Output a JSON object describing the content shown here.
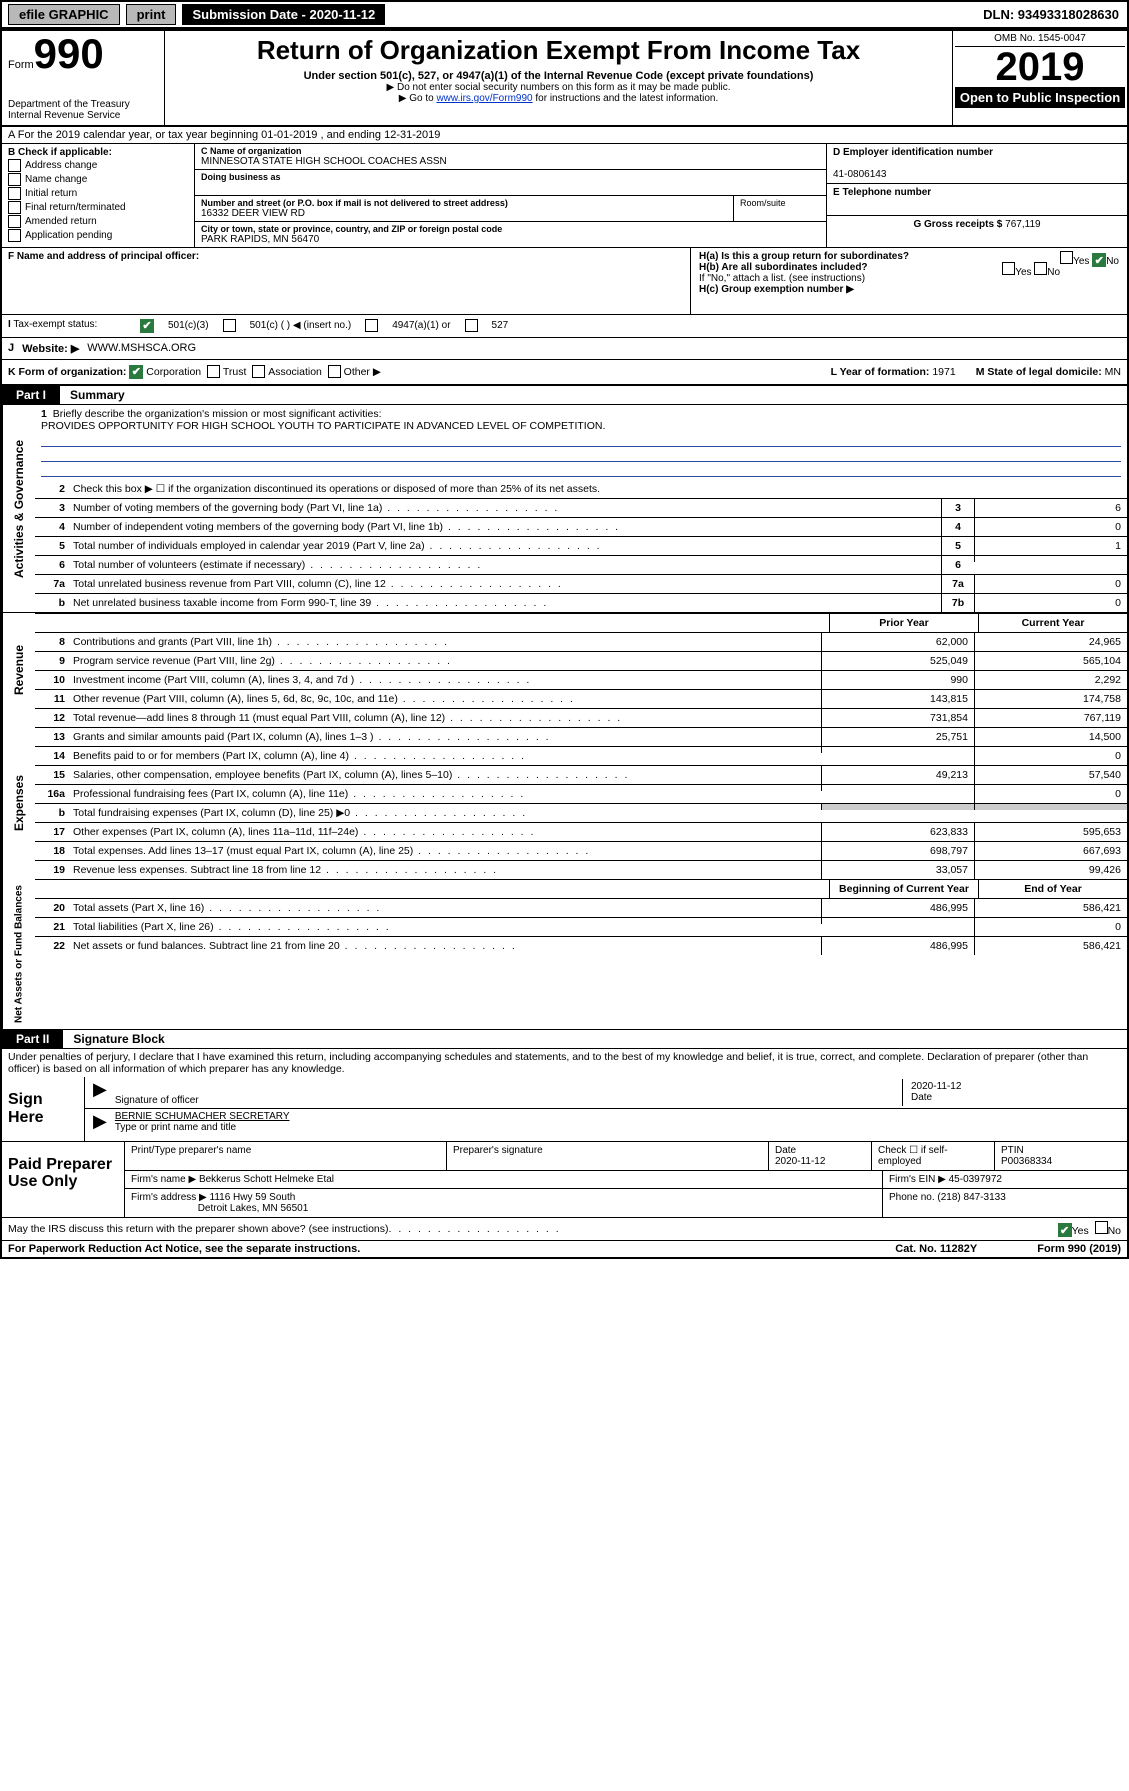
{
  "topbar": {
    "efile": "efile GRAPHIC",
    "print": "print",
    "subdate_label": "Submission Date - 2020-11-12",
    "dln": "DLN: 93493318028630"
  },
  "header": {
    "form_word": "Form",
    "form_num": "990",
    "dept1": "Department of the Treasury",
    "dept2": "Internal Revenue Service",
    "title": "Return of Organization Exempt From Income Tax",
    "subtitle": "Under section 501(c), 527, or 4947(a)(1) of the Internal Revenue Code (except private foundations)",
    "note1": "▶ Do not enter social security numbers on this form as it may be made public.",
    "note2_pre": "▶ Go to ",
    "note2_link": "www.irs.gov/Form990",
    "note2_post": " for instructions and the latest information.",
    "omb": "OMB No. 1545-0047",
    "year": "2019",
    "open": "Open to Public Inspection"
  },
  "lineA": "A For the 2019 calendar year, or tax year beginning 01-01-2019    , and ending 12-31-2019",
  "colB": {
    "label": "B Check if applicable:",
    "items": [
      "Address change",
      "Name change",
      "Initial return",
      "Final return/terminated",
      "Amended return",
      "Application pending"
    ]
  },
  "colC": {
    "name_label": "C Name of organization",
    "name": "MINNESOTA STATE HIGH SCHOOL COACHES ASSN",
    "dba_label": "Doing business as",
    "addr_label": "Number and street (or P.O. box if mail is not delivered to street address)",
    "addr": "16332 DEER VIEW RD",
    "room_label": "Room/suite",
    "city_label": "City or town, state or province, country, and ZIP or foreign postal code",
    "city": "PARK RAPIDS, MN  56470"
  },
  "colD": {
    "label": "D Employer identification number",
    "value": "41-0806143"
  },
  "colE": {
    "label": "E Telephone number",
    "value": ""
  },
  "colG": {
    "label": "G Gross receipts $",
    "value": "767,119"
  },
  "colF": {
    "label": "F Name and address of principal officer:"
  },
  "colH": {
    "ha_label": "H(a)  Is this a group return for subordinates?",
    "hb_label": "H(b)  Are all subordinates included?",
    "hb_note": "If \"No,\" attach a list. (see instructions)",
    "hc_label": "H(c)  Group exemption number ▶"
  },
  "rowI": {
    "label": "Tax-exempt status:",
    "opts": [
      "501(c)(3)",
      "501(c) (  ) ◀ (insert no.)",
      "4947(a)(1) or",
      "527"
    ]
  },
  "rowJ": {
    "label": "Website: ▶",
    "value": "WWW.MSHSCA.ORG"
  },
  "rowK": {
    "k": "K Form of organization:",
    "opts": [
      "Corporation",
      "Trust",
      "Association",
      "Other ▶"
    ],
    "l_label": "L Year of formation:",
    "l_val": "1971",
    "m_label": "M State of legal domicile:",
    "m_val": "MN"
  },
  "partI": {
    "bar": "Part I",
    "title": "Summary"
  },
  "sidebars": {
    "gov": "Activities & Governance",
    "rev": "Revenue",
    "exp": "Expenses",
    "net": "Net Assets or Fund Balances"
  },
  "governance": {
    "l1_label": "Briefly describe the organization's mission or most significant activities:",
    "l1_text": "PROVIDES OPPORTUNITY FOR HIGH SCHOOL YOUTH TO PARTICIPATE IN ADVANCED LEVEL OF COMPETITION.",
    "l2": "Check this box ▶ ☐  if the organization discontinued its operations or disposed of more than 25% of its net assets.",
    "rows": [
      {
        "n": "3",
        "t": "Number of voting members of the governing body (Part VI, line 1a)",
        "c": "3",
        "v": "6"
      },
      {
        "n": "4",
        "t": "Number of independent voting members of the governing body (Part VI, line 1b)",
        "c": "4",
        "v": "0"
      },
      {
        "n": "5",
        "t": "Total number of individuals employed in calendar year 2019 (Part V, line 2a)",
        "c": "5",
        "v": "1"
      },
      {
        "n": "6",
        "t": "Total number of volunteers (estimate if necessary)",
        "c": "6",
        "v": ""
      },
      {
        "n": "7a",
        "t": "Total unrelated business revenue from Part VIII, column (C), line 12",
        "c": "7a",
        "v": "0"
      },
      {
        "n": "b",
        "t": "Net unrelated business taxable income from Form 990-T, line 39",
        "c": "7b",
        "v": "0"
      }
    ]
  },
  "columns": {
    "prior": "Prior Year",
    "current": "Current Year",
    "boy": "Beginning of Current Year",
    "eoy": "End of Year"
  },
  "revenue": [
    {
      "n": "8",
      "t": "Contributions and grants (Part VIII, line 1h)",
      "p": "62,000",
      "c": "24,965"
    },
    {
      "n": "9",
      "t": "Program service revenue (Part VIII, line 2g)",
      "p": "525,049",
      "c": "565,104"
    },
    {
      "n": "10",
      "t": "Investment income (Part VIII, column (A), lines 3, 4, and 7d )",
      "p": "990",
      "c": "2,292"
    },
    {
      "n": "11",
      "t": "Other revenue (Part VIII, column (A), lines 5, 6d, 8c, 9c, 10c, and 11e)",
      "p": "143,815",
      "c": "174,758"
    },
    {
      "n": "12",
      "t": "Total revenue—add lines 8 through 11 (must equal Part VIII, column (A), line 12)",
      "p": "731,854",
      "c": "767,119"
    }
  ],
  "expenses": [
    {
      "n": "13",
      "t": "Grants and similar amounts paid (Part IX, column (A), lines 1–3 )",
      "p": "25,751",
      "c": "14,500"
    },
    {
      "n": "14",
      "t": "Benefits paid to or for members (Part IX, column (A), line 4)",
      "p": "",
      "c": "0"
    },
    {
      "n": "15",
      "t": "Salaries, other compensation, employee benefits (Part IX, column (A), lines 5–10)",
      "p": "49,213",
      "c": "57,540"
    },
    {
      "n": "16a",
      "t": "Professional fundraising fees (Part IX, column (A), line 11e)",
      "p": "",
      "c": "0"
    },
    {
      "n": "b",
      "t": "Total fundraising expenses (Part IX, column (D), line 25) ▶0",
      "p": "",
      "c": "",
      "shade": true
    },
    {
      "n": "17",
      "t": "Other expenses (Part IX, column (A), lines 11a–11d, 11f–24e)",
      "p": "623,833",
      "c": "595,653"
    },
    {
      "n": "18",
      "t": "Total expenses. Add lines 13–17 (must equal Part IX, column (A), line 25)",
      "p": "698,797",
      "c": "667,693"
    },
    {
      "n": "19",
      "t": "Revenue less expenses. Subtract line 18 from line 12",
      "p": "33,057",
      "c": "99,426"
    }
  ],
  "netassets": [
    {
      "n": "20",
      "t": "Total assets (Part X, line 16)",
      "p": "486,995",
      "c": "586,421"
    },
    {
      "n": "21",
      "t": "Total liabilities (Part X, line 26)",
      "p": "",
      "c": "0"
    },
    {
      "n": "22",
      "t": "Net assets or fund balances. Subtract line 21 from line 20",
      "p": "486,995",
      "c": "586,421"
    }
  ],
  "partII": {
    "bar": "Part II",
    "title": "Signature Block"
  },
  "perjury": "Under penalties of perjury, I declare that I have examined this return, including accompanying schedules and statements, and to the best of my knowledge and belief, it is true, correct, and complete. Declaration of preparer (other than officer) is based on all information of which preparer has any knowledge.",
  "sign": {
    "label": "Sign Here",
    "sig_label": "Signature of officer",
    "date": "2020-11-12",
    "date_label": "Date",
    "name": "BERNIE SCHUMACHER  SECRETARY",
    "name_label": "Type or print name and title"
  },
  "paid": {
    "label": "Paid Preparer Use Only",
    "h1": "Print/Type preparer's name",
    "h2": "Preparer's signature",
    "h3": "Date",
    "h3v": "2020-11-12",
    "h4": "Check ☐ if self-employed",
    "h5": "PTIN",
    "h5v": "P00368334",
    "firm_label": "Firm's name    ▶",
    "firm": "Bekkerus Schott Helmeke Etal",
    "ein_label": "Firm's EIN ▶",
    "ein": "45-0397972",
    "addr_label": "Firm's address ▶",
    "addr1": "1116 Hwy 59 South",
    "addr2": "Detroit Lakes, MN  56501",
    "phone_label": "Phone no.",
    "phone": "(218) 847-3133"
  },
  "footer": {
    "discuss": "May the IRS discuss this return with the preparer shown above? (see instructions)",
    "paperwork": "For Paperwork Reduction Act Notice, see the separate instructions.",
    "cat": "Cat. No. 11282Y",
    "form": "Form 990 (2019)"
  },
  "yesno": {
    "yes": "Yes",
    "no": "No"
  }
}
